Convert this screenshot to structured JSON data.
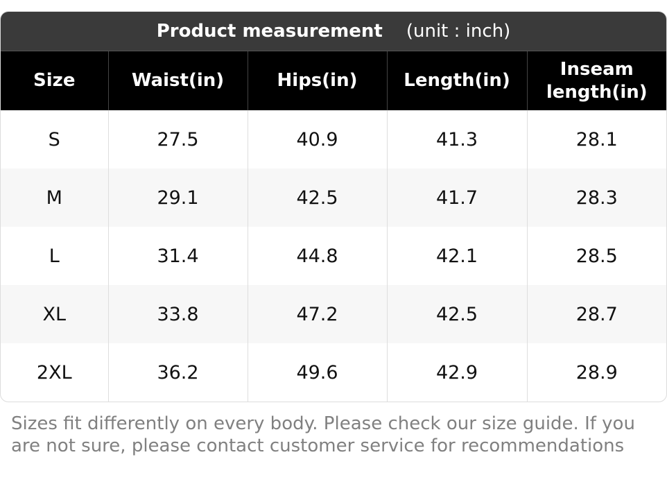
{
  "header": {
    "title": "Product measurement",
    "unit": "(unit : inch)"
  },
  "table": {
    "columns": [
      "Size",
      "Waist(in)",
      "Hips(in)",
      "Length(in)",
      "Inseam length(in)"
    ],
    "rows": [
      [
        "S",
        "27.5",
        "40.9",
        "41.3",
        "28.1"
      ],
      [
        "M",
        "29.1",
        "42.5",
        "41.7",
        "28.3"
      ],
      [
        "L",
        "31.4",
        "44.8",
        "42.1",
        "28.5"
      ],
      [
        "XL",
        "33.8",
        "47.2",
        "42.5",
        "28.7"
      ],
      [
        "2XL",
        "36.2",
        "49.6",
        "42.9",
        "28.9"
      ]
    ]
  },
  "note": "Sizes fit differently on every body. Please check our size guide. If you are not sure, please contact customer service for recommendations"
}
